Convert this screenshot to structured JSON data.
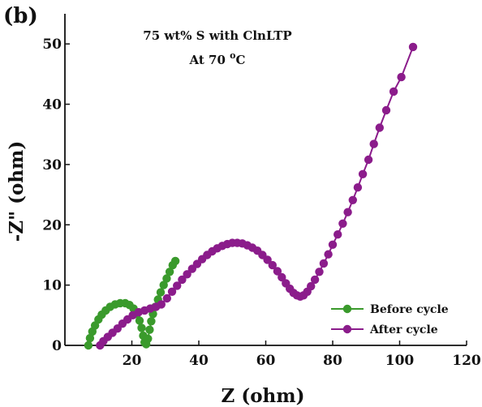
{
  "chart_data": {
    "type": "scatter",
    "panel_label": "(b)",
    "title": "75 wt% S with ClnLTP",
    "subtitle_prefix": "At 70 ",
    "subtitle_sup": "o",
    "subtitle_suffix": "C",
    "xlabel": "Z (ohm)",
    "ylabel": "-Z\" (ohm)",
    "xlim": [
      0,
      120
    ],
    "ylim": [
      0,
      55
    ],
    "xticks": [
      20,
      40,
      60,
      80,
      100,
      120
    ],
    "yticks": [
      0,
      10,
      20,
      30,
      40,
      50
    ],
    "grid": false,
    "legend_position": "lower-right",
    "series": [
      {
        "name": "Before cycle",
        "color": "#3a9a2c",
        "points": [
          [
            7.0,
            0.0
          ],
          [
            7.5,
            1.2
          ],
          [
            8.2,
            2.3
          ],
          [
            9.0,
            3.3
          ],
          [
            10.0,
            4.3
          ],
          [
            11.0,
            5.1
          ],
          [
            12.2,
            5.8
          ],
          [
            13.5,
            6.4
          ],
          [
            15.0,
            6.8
          ],
          [
            16.5,
            7.0
          ],
          [
            18.0,
            7.0
          ],
          [
            19.3,
            6.7
          ],
          [
            20.5,
            6.1
          ],
          [
            21.5,
            5.2
          ],
          [
            22.3,
            4.1
          ],
          [
            22.9,
            2.9
          ],
          [
            23.4,
            1.6
          ],
          [
            23.8,
            0.5
          ],
          [
            24.3,
            0.2
          ],
          [
            24.8,
            1.1
          ],
          [
            25.3,
            2.6
          ],
          [
            25.8,
            4.0
          ],
          [
            26.3,
            5.2
          ],
          [
            27.0,
            6.4
          ],
          [
            27.8,
            7.6
          ],
          [
            28.6,
            8.8
          ],
          [
            29.5,
            10.0
          ],
          [
            30.4,
            11.1
          ],
          [
            31.3,
            12.2
          ],
          [
            32.2,
            13.3
          ],
          [
            33.0,
            14.0
          ]
        ]
      },
      {
        "name": "After cycle",
        "color": "#8b1c8b",
        "points": [
          [
            10.5,
            0.0
          ],
          [
            11.5,
            0.7
          ],
          [
            12.8,
            1.4
          ],
          [
            14.2,
            2.1
          ],
          [
            15.7,
            2.8
          ],
          [
            17.2,
            3.6
          ],
          [
            18.7,
            4.3
          ],
          [
            20.3,
            5.0
          ],
          [
            22.0,
            5.5
          ],
          [
            23.8,
            5.8
          ],
          [
            25.5,
            6.1
          ],
          [
            27.2,
            6.4
          ],
          [
            28.8,
            6.8
          ],
          [
            30.5,
            7.8
          ],
          [
            32.0,
            8.9
          ],
          [
            33.5,
            9.9
          ],
          [
            35.0,
            10.9
          ],
          [
            36.5,
            11.8
          ],
          [
            38.0,
            12.7
          ],
          [
            39.5,
            13.5
          ],
          [
            41.0,
            14.3
          ],
          [
            42.5,
            15.0
          ],
          [
            44.0,
            15.6
          ],
          [
            45.5,
            16.1
          ],
          [
            47.0,
            16.5
          ],
          [
            48.5,
            16.8
          ],
          [
            50.0,
            17.0
          ],
          [
            51.5,
            17.0
          ],
          [
            53.0,
            16.9
          ],
          [
            54.5,
            16.6
          ],
          [
            56.0,
            16.2
          ],
          [
            57.5,
            15.7
          ],
          [
            59.0,
            15.0
          ],
          [
            60.5,
            14.2
          ],
          [
            62.0,
            13.3
          ],
          [
            63.5,
            12.3
          ],
          [
            64.8,
            11.3
          ],
          [
            66.0,
            10.3
          ],
          [
            67.2,
            9.4
          ],
          [
            68.3,
            8.7
          ],
          [
            69.3,
            8.3
          ],
          [
            70.3,
            8.1
          ],
          [
            71.3,
            8.3
          ],
          [
            72.4,
            8.9
          ],
          [
            73.5,
            9.8
          ],
          [
            74.7,
            10.9
          ],
          [
            76.0,
            12.2
          ],
          [
            77.3,
            13.6
          ],
          [
            78.7,
            15.1
          ],
          [
            80.0,
            16.7
          ],
          [
            81.5,
            18.4
          ],
          [
            83.0,
            20.2
          ],
          [
            84.5,
            22.1
          ],
          [
            86.0,
            24.1
          ],
          [
            87.5,
            26.2
          ],
          [
            89.0,
            28.4
          ],
          [
            90.7,
            30.8
          ],
          [
            92.3,
            33.4
          ],
          [
            94.0,
            36.1
          ],
          [
            96.0,
            39.0
          ],
          [
            98.2,
            42.1
          ],
          [
            100.5,
            44.5
          ],
          [
            104.0,
            49.5
          ]
        ]
      }
    ]
  }
}
